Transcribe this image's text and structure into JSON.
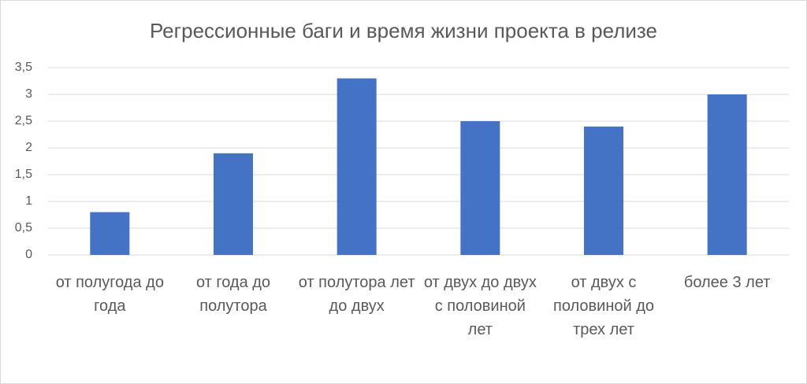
{
  "chart_data": {
    "type": "bar",
    "title": "Регрессионные баги и время жизни проекта в релизе",
    "categories": [
      "от полугода до года",
      "от года до полутора",
      "от полутора лет до двух",
      "от двух до двух с половиной лет",
      "от двух с половиной до трех лет",
      "более 3 лет"
    ],
    "values": [
      0.8,
      1.9,
      3.3,
      2.5,
      2.4,
      3.0
    ],
    "color": "#4472c4",
    "ylim": [
      0,
      3.5
    ],
    "yticks": [
      0,
      {
        "value": 0.5,
        "label": "0,5"
      },
      1,
      {
        "value": 1.5,
        "label": "1,5"
      },
      2,
      {
        "value": 2.5,
        "label": "2,5"
      },
      3,
      {
        "value": 3.5,
        "label": "3,5"
      }
    ],
    "grid": true
  }
}
